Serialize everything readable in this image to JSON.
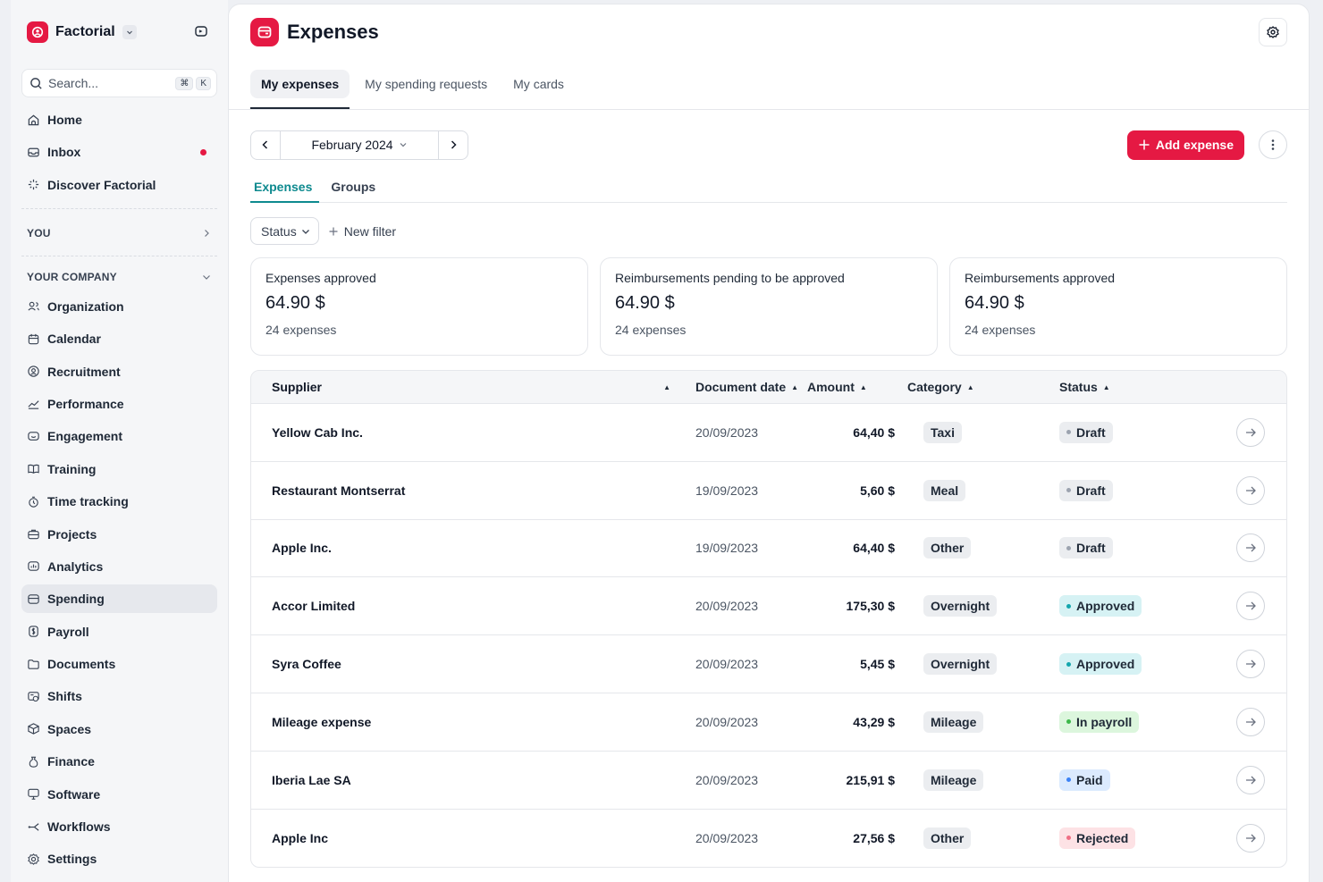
{
  "sidebar": {
    "brand": "Factorial",
    "search_placeholder": "Search...",
    "shortcut_keys": [
      "⌘",
      "K"
    ],
    "top_items": [
      {
        "label": "Home",
        "icon": "home-icon"
      },
      {
        "label": "Inbox",
        "icon": "inbox-icon",
        "badge": true
      },
      {
        "label": "Discover Factorial",
        "icon": "sparkle-icon"
      }
    ],
    "you_label": "YOU",
    "company_label": "YOUR COMPANY",
    "company_items": [
      {
        "label": "Organization",
        "icon": "organization-icon"
      },
      {
        "label": "Calendar",
        "icon": "calendar-icon"
      },
      {
        "label": "Recruitment",
        "icon": "recruitment-icon"
      },
      {
        "label": "Performance",
        "icon": "performance-icon"
      },
      {
        "label": "Engagement",
        "icon": "engagement-icon"
      },
      {
        "label": "Training",
        "icon": "training-icon"
      },
      {
        "label": "Time tracking",
        "icon": "timer-icon"
      },
      {
        "label": "Projects",
        "icon": "projects-icon"
      },
      {
        "label": "Analytics",
        "icon": "analytics-icon"
      },
      {
        "label": "Spending",
        "icon": "wallet-icon",
        "active": true
      },
      {
        "label": "Payroll",
        "icon": "payroll-icon"
      },
      {
        "label": "Documents",
        "icon": "folder-icon"
      },
      {
        "label": "Shifts",
        "icon": "shifts-icon"
      },
      {
        "label": "Spaces",
        "icon": "spaces-icon"
      },
      {
        "label": "Finance",
        "icon": "finance-icon"
      },
      {
        "label": "Software",
        "icon": "monitor-icon"
      },
      {
        "label": "Workflows",
        "icon": "workflow-icon"
      },
      {
        "label": "Settings",
        "icon": "settings-icon"
      }
    ]
  },
  "header": {
    "title": "Expenses",
    "tabs": [
      "My expenses",
      "My spending requests",
      "My cards"
    ],
    "active_tab": "My expenses"
  },
  "toolbar": {
    "period": "February 2024",
    "add_label": "Add expense"
  },
  "subtabs": [
    "Expenses",
    "Groups"
  ],
  "filters": {
    "status_label": "Status",
    "new_filter_label": "New filter"
  },
  "stats": [
    {
      "title": "Expenses approved",
      "value": "64.90 $",
      "sub": "24 expenses"
    },
    {
      "title": "Reimbursements pending to be approved",
      "value": "64.90 $",
      "sub": "24 expenses"
    },
    {
      "title": "Reimbursements approved",
      "value": "64.90 $",
      "sub": "24 expenses"
    }
  ],
  "table": {
    "columns": {
      "supplier": "Supplier",
      "date": "Document date",
      "amount": "Amount",
      "category": "Category",
      "status": "Status"
    },
    "rows": [
      {
        "supplier": "Yellow Cab Inc.",
        "date": "20/09/2023",
        "amount": "64,40 $",
        "category": "Taxi",
        "status": "Draft",
        "status_kind": "draft"
      },
      {
        "supplier": "Restaurant Montserrat",
        "date": "19/09/2023",
        "amount": "5,60 $",
        "category": "Meal",
        "status": "Draft",
        "status_kind": "draft"
      },
      {
        "supplier": "Apple Inc.",
        "date": "19/09/2023",
        "amount": "64,40 $",
        "category": "Other",
        "status": "Draft",
        "status_kind": "draft"
      },
      {
        "supplier": "Accor Limited",
        "date": "20/09/2023",
        "amount": "175,30 $",
        "category": "Overnight",
        "status": "Approved",
        "status_kind": "approved"
      },
      {
        "supplier": "Syra Coffee",
        "date": "20/09/2023",
        "amount": "5,45 $",
        "category": "Overnight",
        "status": "Approved",
        "status_kind": "approved"
      },
      {
        "supplier": "Mileage expense",
        "date": "20/09/2023",
        "amount": "43,29 $",
        "category": "Mileage",
        "status": "In payroll",
        "status_kind": "payroll"
      },
      {
        "supplier": "Iberia Lae SA",
        "date": "20/09/2023",
        "amount": "215,91 $",
        "category": "Mileage",
        "status": "Paid",
        "status_kind": "paid"
      },
      {
        "supplier": "Apple Inc",
        "date": "20/09/2023",
        "amount": "27,56 $",
        "category": "Other",
        "status": "Rejected",
        "status_kind": "rejected"
      }
    ]
  },
  "colors": {
    "brand": "#e51943",
    "accent_teal": "#0e8a8f"
  }
}
